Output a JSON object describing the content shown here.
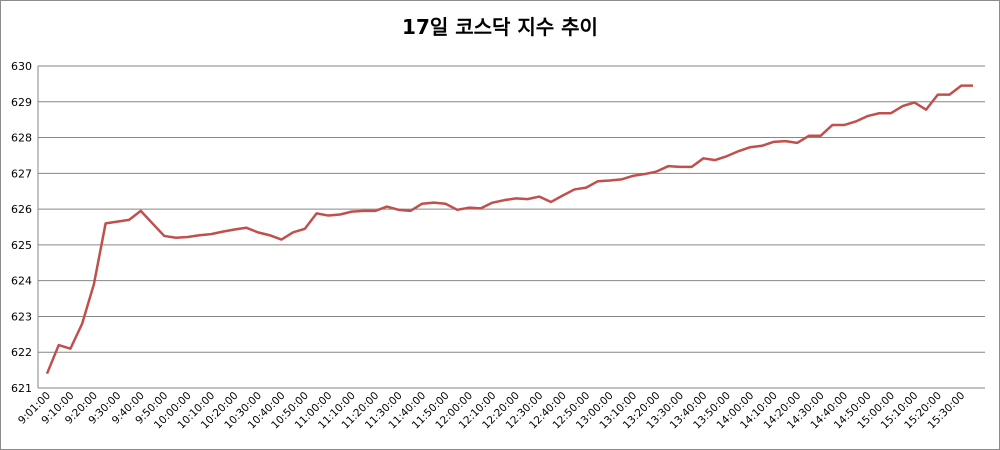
{
  "chart_data": {
    "type": "line",
    "title": "17일 코스닥 지수 추이",
    "categories": [
      "9:01:00",
      null,
      "9:10:00",
      null,
      "9:20:00",
      null,
      "9:30:00",
      null,
      "9:40:00",
      null,
      "9:50:00",
      null,
      "10:00:00",
      null,
      "10:10:00",
      null,
      "10:20:00",
      null,
      "10:30:00",
      null,
      "10:40:00",
      null,
      "10:50:00",
      null,
      "11:00:00",
      null,
      "11:10:00",
      null,
      "11:20:00",
      null,
      "11:30:00",
      null,
      "11:40:00",
      null,
      "11:50:00",
      null,
      "12:00:00",
      null,
      "12:10:00",
      null,
      "12:20:00",
      null,
      "12:30:00",
      null,
      "12:40:00",
      null,
      "12:50:00",
      null,
      "13:00:00",
      null,
      "13:10:00",
      null,
      "13:20:00",
      null,
      "13:30:00",
      null,
      "13:40:00",
      null,
      "13:50:00",
      null,
      "14:00:00",
      null,
      "14:10:00",
      null,
      "14:20:00",
      null,
      "14:30:00",
      null,
      "14:40:00",
      null,
      "14:50:00",
      null,
      "15:00:00",
      null,
      "15:10:00",
      null,
      "15:20:00",
      null,
      "15:30:00",
      null
    ],
    "series": [
      {
        "color": "#c0504d",
        "values": [
          621.4,
          622.2,
          622.1,
          622.8,
          623.9,
          625.6,
          625.65,
          625.7,
          625.95,
          625.6,
          625.25,
          625.2,
          625.22,
          625.27,
          625.3,
          625.37,
          625.43,
          625.48,
          625.35,
          625.27,
          625.15,
          625.35,
          625.45,
          625.88,
          625.82,
          625.85,
          625.93,
          625.95,
          625.95,
          626.07,
          625.98,
          625.95,
          626.15,
          626.18,
          626.15,
          625.98,
          626.04,
          626.02,
          626.18,
          626.25,
          626.3,
          626.28,
          626.35,
          626.2,
          626.38,
          626.55,
          626.6,
          626.78,
          626.8,
          626.83,
          626.93,
          626.98,
          627.05,
          627.2,
          627.18,
          627.18,
          627.42,
          627.37,
          627.48,
          627.62,
          627.73,
          627.77,
          627.88,
          627.9,
          627.85,
          628.05,
          628.05,
          628.35,
          628.35,
          628.45,
          628.6,
          628.68,
          628.68,
          628.88,
          628.98,
          628.78,
          629.2,
          629.2,
          629.45,
          629.45
        ]
      }
    ],
    "ylim": [
      621,
      630
    ],
    "yticks": [
      621,
      622,
      623,
      624,
      625,
      626,
      627,
      628,
      629,
      630
    ],
    "grid": true
  }
}
